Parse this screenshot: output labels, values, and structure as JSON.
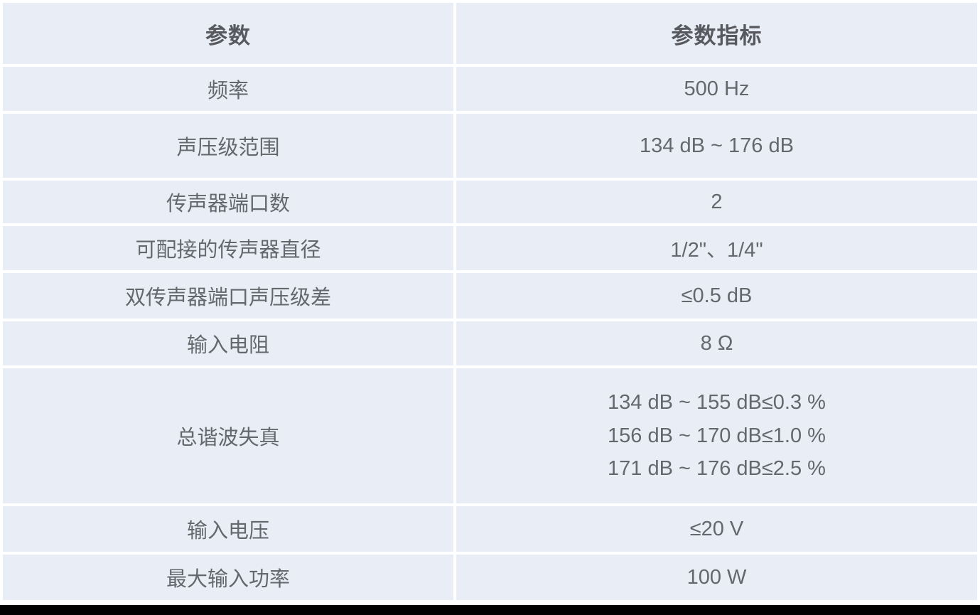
{
  "page": {
    "background": "#ffffff",
    "bottom_bar_color": "#010101"
  },
  "colors": {
    "cell_background": "#e9edf6",
    "grid_gap": "#ffffff",
    "header_text": "#57595e",
    "body_text": "#64686d"
  },
  "table": {
    "columns": [
      {
        "label": "参数"
      },
      {
        "label": "参数指标"
      }
    ],
    "rows": [
      {
        "param": "频率",
        "value": "500 Hz"
      },
      {
        "param": "声压级范围",
        "value": "134 dB ~ 176 dB"
      },
      {
        "param": "传声器端口数",
        "value": "2"
      },
      {
        "param": "可配接的传声器直径",
        "value": "1/2\"、1/4\""
      },
      {
        "param": "双传声器端口声压级差",
        "value": "≤0.5 dB"
      },
      {
        "param": "输入电阻",
        "value": "8 Ω"
      },
      {
        "param": "总谐波失真",
        "value_lines": [
          "134 dB ~ 155 dB≤0.3 %",
          "156 dB ~ 170 dB≤1.0 %",
          "171 dB ~ 176 dB≤2.5 %"
        ]
      },
      {
        "param": "输入电压",
        "value": "≤20 V"
      },
      {
        "param": "最大输入功率",
        "value": "100 W"
      }
    ]
  }
}
